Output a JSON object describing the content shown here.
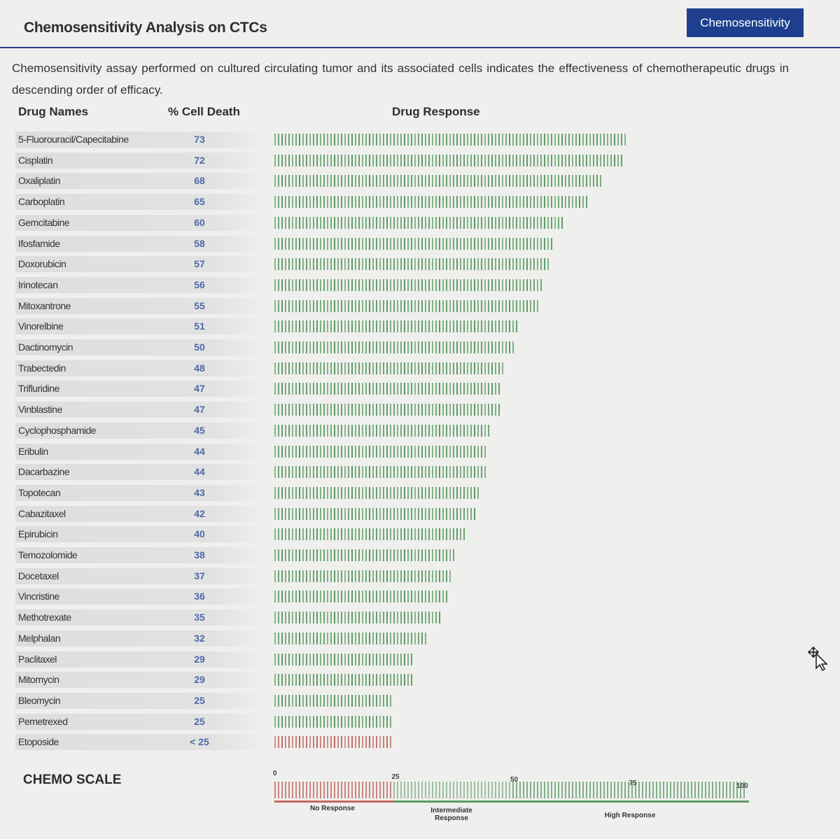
{
  "header": {
    "title": "Chemosensitivity Analysis on CTCs",
    "badge": "Chemosensitivity"
  },
  "intro": "Chemosensitivity assay performed on cultured circulating tumor and its associated cells indicates the effectiveness of chemotherapeutic drugs in descending order of efficacy.",
  "columns": {
    "drug": "Drug Names",
    "death": "% Cell Death",
    "response": "Drug Response"
  },
  "colors": {
    "high": "#5d9b65",
    "low": "#c26a62",
    "value": "#4e69a8",
    "accent": "#1d3f8d"
  },
  "drugs": [
    {
      "name": "5-Fluorouracil/Capecitabine",
      "value": "73",
      "pct": 73
    },
    {
      "name": "Cisplatin",
      "value": "72",
      "pct": 72
    },
    {
      "name": "Oxaliplatin",
      "value": "68",
      "pct": 68
    },
    {
      "name": "Carboplatin",
      "value": "65",
      "pct": 65
    },
    {
      "name": "Gemcitabine",
      "value": "60",
      "pct": 60
    },
    {
      "name": "Ifosfamide",
      "value": "58",
      "pct": 58
    },
    {
      "name": "Doxorubicin",
      "value": "57",
      "pct": 57
    },
    {
      "name": "Irinotecan",
      "value": "56",
      "pct": 56
    },
    {
      "name": "Mitoxantrone",
      "value": "55",
      "pct": 55
    },
    {
      "name": "Vinorelbine",
      "value": "51",
      "pct": 51
    },
    {
      "name": "Dactinomycin",
      "value": "50",
      "pct": 50
    },
    {
      "name": "Trabectedin",
      "value": "48",
      "pct": 48
    },
    {
      "name": "Trifluridine",
      "value": "47",
      "pct": 47
    },
    {
      "name": "Vinblastine",
      "value": "47",
      "pct": 47
    },
    {
      "name": "Cyclophosphamide",
      "value": "45",
      "pct": 45
    },
    {
      "name": "Eribulin",
      "value": "44",
      "pct": 44
    },
    {
      "name": "Dacarbazine",
      "value": "44",
      "pct": 44
    },
    {
      "name": "Topotecan",
      "value": "43",
      "pct": 43
    },
    {
      "name": "Cabazitaxel",
      "value": "42",
      "pct": 42
    },
    {
      "name": "Epirubicin",
      "value": "40",
      "pct": 40
    },
    {
      "name": "Temozolomide",
      "value": "38",
      "pct": 38
    },
    {
      "name": "Docetaxel",
      "value": "37",
      "pct": 37
    },
    {
      "name": "Vincristine",
      "value": "36",
      "pct": 36
    },
    {
      "name": "Methotrexate",
      "value": "35",
      "pct": 35
    },
    {
      "name": "Melphalan",
      "value": "32",
      "pct": 32
    },
    {
      "name": "Paclitaxel",
      "value": "29",
      "pct": 29
    },
    {
      "name": "Mitomycin",
      "value": "29",
      "pct": 29
    },
    {
      "name": "Bleomycin",
      "value": "25",
      "pct": 25
    },
    {
      "name": "Pemetrexed",
      "value": "25",
      "pct": 25
    },
    {
      "name": "Etoposide",
      "value": "< 25",
      "pct": 25,
      "low": true
    }
  ],
  "scale": {
    "title": "CHEMO SCALE",
    "marks": [
      "0",
      "25",
      "50",
      "75",
      "100"
    ],
    "labels": {
      "none": "No Response",
      "intermediate": "Intermediate Response",
      "high": "High Response"
    }
  },
  "icons": {
    "cursor": "move-cursor-icon"
  }
}
